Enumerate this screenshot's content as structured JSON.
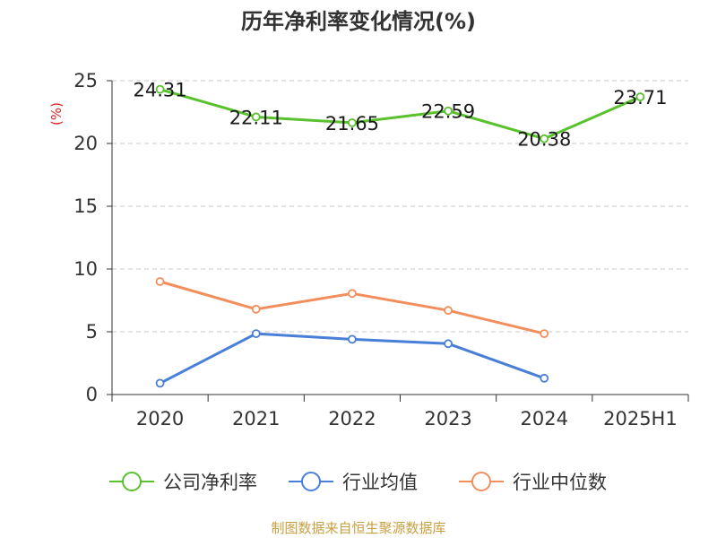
{
  "chart_data": {
    "type": "line",
    "title": "历年净利率变化情况(%)",
    "ylabel": "(%)",
    "xlabel": "",
    "categories": [
      "2020",
      "2021",
      "2022",
      "2023",
      "2024",
      "2025H1"
    ],
    "ylim": [
      0,
      25
    ],
    "yticks": [
      0,
      5,
      10,
      15,
      20,
      25
    ],
    "grid": true,
    "legend_position": "bottom",
    "series": [
      {
        "name": "公司净利率",
        "color": "#5ac12e",
        "show_labels": true,
        "values": [
          24.31,
          22.11,
          21.65,
          22.59,
          20.38,
          23.71
        ]
      },
      {
        "name": "行业均值",
        "color": "#4a7fd8",
        "show_labels": false,
        "values": [
          0.9,
          4.85,
          4.4,
          4.05,
          1.3,
          null
        ]
      },
      {
        "name": "行业中位数",
        "color": "#f28e5b",
        "show_labels": false,
        "values": [
          9.0,
          6.8,
          8.05,
          6.7,
          4.85,
          null
        ]
      }
    ]
  },
  "footer": {
    "source": "制图数据来自恒生聚源数据库"
  }
}
